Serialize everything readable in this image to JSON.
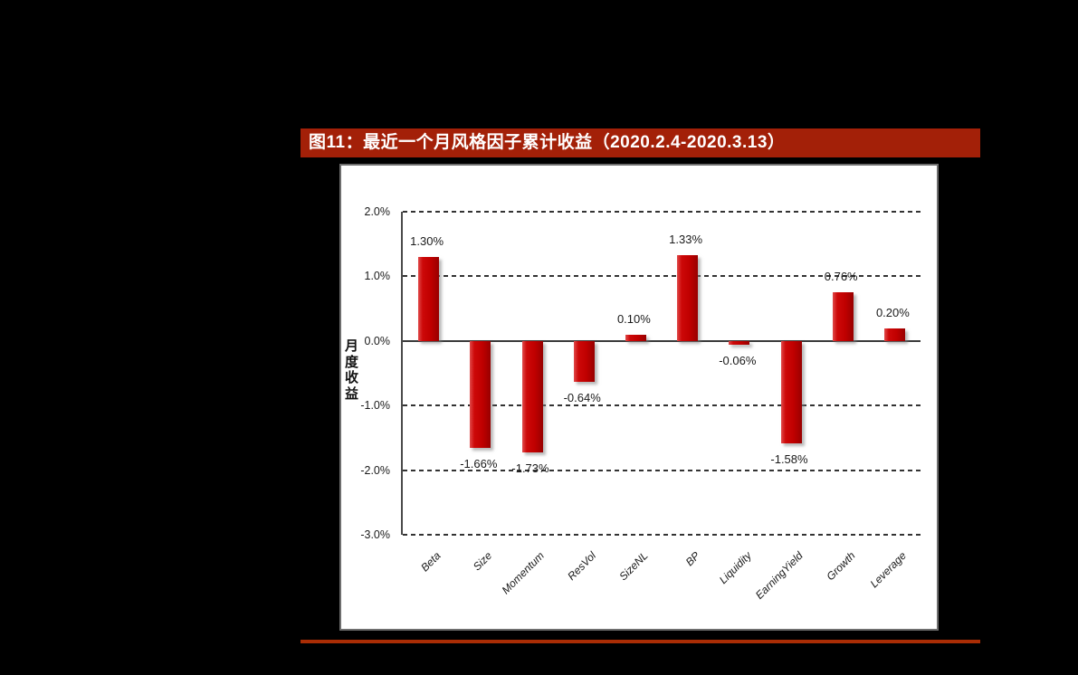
{
  "figure": {
    "number_and_title": "图11：最近一个月风格因子累计收益（2020.2.4-2020.3.13）",
    "title_bar_color": "#A32008",
    "divider_color": "#AA2D05",
    "page_background": "#000000"
  },
  "chart_data": {
    "type": "bar",
    "title": "图11：最近一个月风格因子累计收益（2020.2.4-2020.3.13）",
    "categories": [
      "Beta",
      "Size",
      "Momentum",
      "ResVol",
      "SizeNL",
      "BP",
      "Liquidity",
      "EarningYield",
      "Growth",
      "Leverage"
    ],
    "values": [
      1.3,
      -1.66,
      -1.73,
      -0.64,
      0.1,
      1.33,
      -0.06,
      -1.58,
      0.76,
      0.2
    ],
    "data_labels": [
      "1.30%",
      "-1.66%",
      "-1.73%",
      "-0.64%",
      "0.10%",
      "1.33%",
      "-0.06%",
      "-1.58%",
      "0.76%",
      "0.20%"
    ],
    "ylabel": "月度收益",
    "xlabel": "",
    "yticks": [
      {
        "label": "2.0%",
        "value": 2.0
      },
      {
        "label": "1.0%",
        "value": 1.0
      },
      {
        "label": "0.0%",
        "value": 0.0
      },
      {
        "label": "-1.0%",
        "value": -1.0
      },
      {
        "label": "-2.0%",
        "value": -2.0
      },
      {
        "label": "-3.0%",
        "value": -3.0
      }
    ],
    "ylim": [
      -3.0,
      2.0
    ],
    "bar_color": "#C00000",
    "grid": {
      "horizontal": true,
      "style": "dashed"
    },
    "zero_line": true,
    "legend_position": "none"
  }
}
